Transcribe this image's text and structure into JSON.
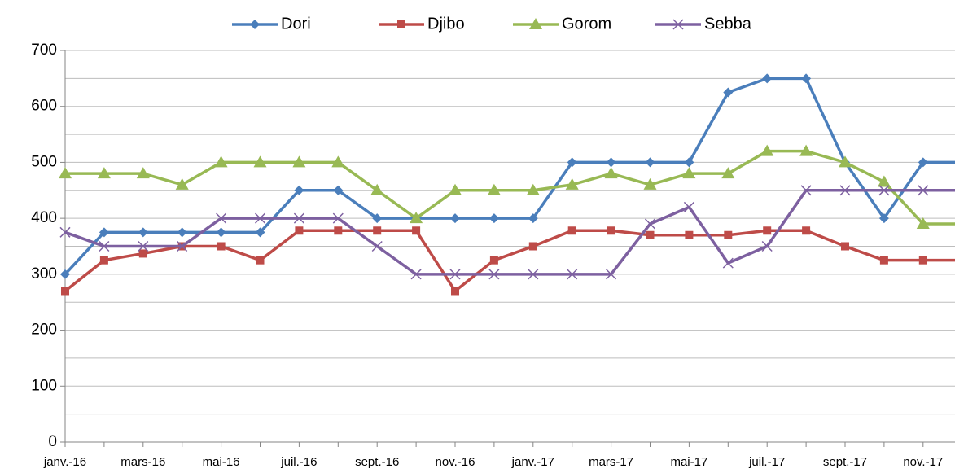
{
  "chart_data": {
    "type": "line",
    "categories": [
      "janv.-16",
      null,
      "mars-16",
      null,
      "mai-16",
      null,
      "juil.-16",
      null,
      "sept.-16",
      null,
      "nov.-16",
      null,
      "janv.-17",
      null,
      "mars-17",
      null,
      "mai-17",
      null,
      "juil.-17",
      null,
      "sept.-17",
      null,
      "nov.-17",
      null
    ],
    "series": [
      {
        "name": "Dori",
        "color": "#4a7ebb",
        "marker": "diamond",
        "values": [
          300,
          375,
          375,
          375,
          375,
          375,
          450,
          450,
          400,
          400,
          400,
          400,
          400,
          500,
          500,
          500,
          500,
          625,
          650,
          650,
          500,
          400,
          500,
          500
        ]
      },
      {
        "name": "Djibo",
        "color": "#be4b48",
        "marker": "square",
        "values": [
          270,
          325,
          337,
          350,
          350,
          325,
          378,
          378,
          378,
          378,
          270,
          325,
          350,
          378,
          378,
          370,
          370,
          370,
          378,
          378,
          350,
          325,
          325,
          325
        ]
      },
      {
        "name": "Gorom",
        "color": "#98b954",
        "marker": "triangle",
        "values": [
          480,
          480,
          480,
          460,
          500,
          500,
          500,
          500,
          450,
          400,
          450,
          450,
          450,
          460,
          480,
          460,
          480,
          480,
          520,
          520,
          500,
          465,
          390,
          390
        ]
      },
      {
        "name": "Sebba",
        "color": "#7d60a0",
        "marker": "x",
        "values": [
          375,
          350,
          350,
          350,
          400,
          400,
          400,
          400,
          350,
          300,
          300,
          300,
          300,
          300,
          300,
          390,
          420,
          320,
          350,
          450,
          450,
          450,
          450,
          450
        ]
      }
    ],
    "ylim": [
      0,
      700
    ],
    "yticks": [
      0,
      100,
      200,
      300,
      400,
      500,
      600,
      700
    ],
    "ygrid_minor": [
      50,
      150,
      250,
      350,
      450,
      550,
      650
    ],
    "grid": true,
    "legend": "top"
  }
}
